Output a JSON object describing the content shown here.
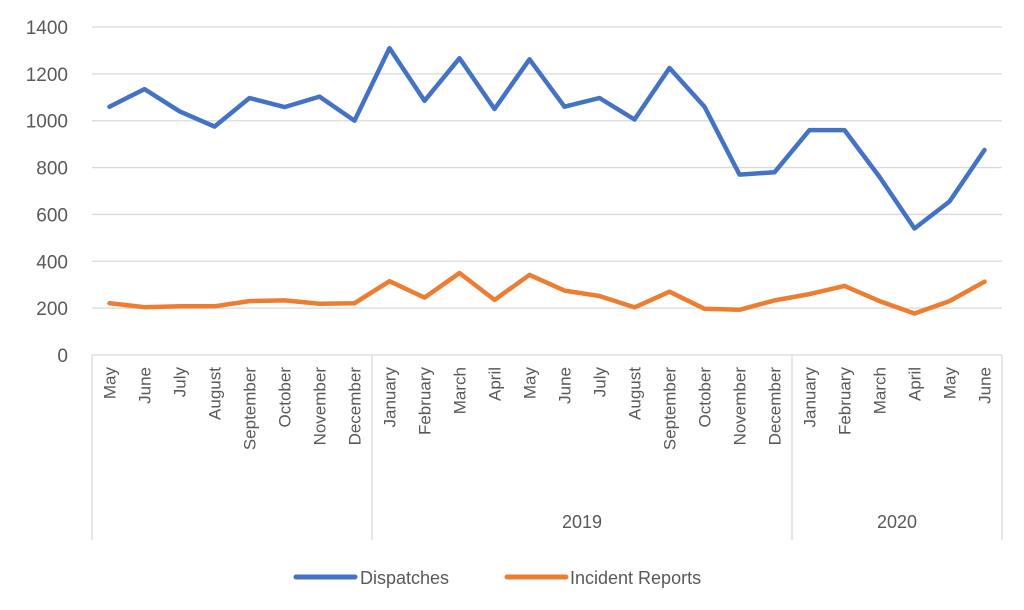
{
  "chart_data": {
    "type": "line",
    "title": "",
    "xlabel": "",
    "ylabel": "",
    "ylim": [
      0,
      1400
    ],
    "yticks": [
      0,
      200,
      400,
      600,
      800,
      1000,
      1200,
      1400
    ],
    "grid": true,
    "legend_position": "bottom",
    "categories": [
      "May",
      "June",
      "July",
      "August",
      "September",
      "October",
      "November",
      "December",
      "January",
      "February",
      "March",
      "April",
      "May",
      "June",
      "July",
      "August",
      "September",
      "October",
      "November",
      "December",
      "January",
      "February",
      "March",
      "April",
      "May",
      "June"
    ],
    "groups": [
      {
        "label": "",
        "count": 8
      },
      {
        "label": "2019",
        "count": 12
      },
      {
        "label": "2020",
        "count": 6
      }
    ],
    "series": [
      {
        "name": "Dispatches",
        "color": "#4472C4",
        "values": [
          1060,
          1135,
          1040,
          975,
          1097,
          1058,
          1103,
          1000,
          1310,
          1085,
          1267,
          1050,
          1262,
          1060,
          1097,
          1005,
          1225,
          1060,
          770,
          780,
          960,
          960,
          760,
          540,
          655,
          875
        ]
      },
      {
        "name": "Incident Reports",
        "color": "#ED7D31",
        "values": [
          221,
          204,
          208,
          208,
          230,
          233,
          219,
          221,
          315,
          245,
          350,
          235,
          342,
          275,
          252,
          203,
          270,
          197,
          193,
          233,
          260,
          295,
          230,
          177,
          230,
          313
        ]
      }
    ]
  }
}
